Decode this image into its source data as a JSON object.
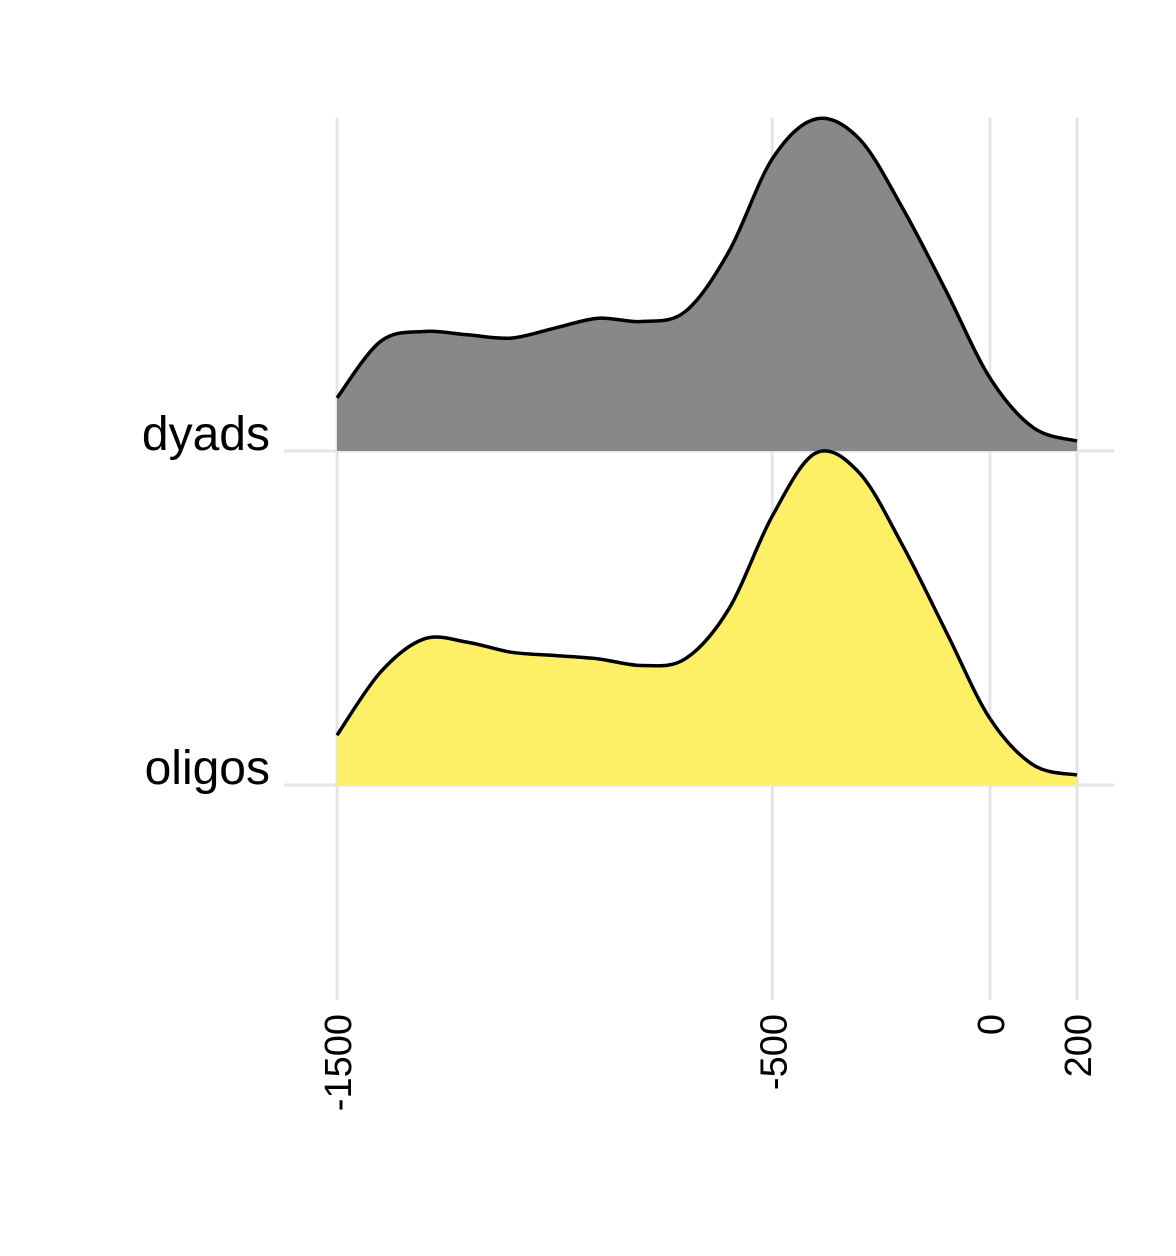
{
  "chart_data": {
    "type": "area",
    "title": "",
    "xlabel": "",
    "ylabel": "",
    "xlim": [
      -1500,
      200
    ],
    "x_ticks": [
      -1500,
      -500,
      0,
      200
    ],
    "x_tick_labels": [
      "-1500",
      "-500",
      "0",
      "200"
    ],
    "grid": true,
    "legend": "none",
    "x": [
      -1500,
      -1400,
      -1300,
      -1200,
      -1100,
      -1000,
      -900,
      -800,
      -700,
      -600,
      -500,
      -400,
      -300,
      -200,
      -100,
      0,
      100,
      200
    ],
    "series": [
      {
        "name": "dyads",
        "color": "#888888",
        "values": [
          0.16,
          0.33,
          0.36,
          0.35,
          0.34,
          0.37,
          0.4,
          0.39,
          0.42,
          0.6,
          0.88,
          1.0,
          0.94,
          0.73,
          0.48,
          0.22,
          0.07,
          0.03
        ]
      },
      {
        "name": "oligos",
        "color": "#FDF066",
        "values": [
          0.15,
          0.34,
          0.44,
          0.43,
          0.4,
          0.39,
          0.38,
          0.36,
          0.38,
          0.53,
          0.81,
          1.0,
          0.94,
          0.72,
          0.46,
          0.2,
          0.06,
          0.03
        ]
      }
    ],
    "categories": [
      "dyads",
      "oligos"
    ]
  }
}
